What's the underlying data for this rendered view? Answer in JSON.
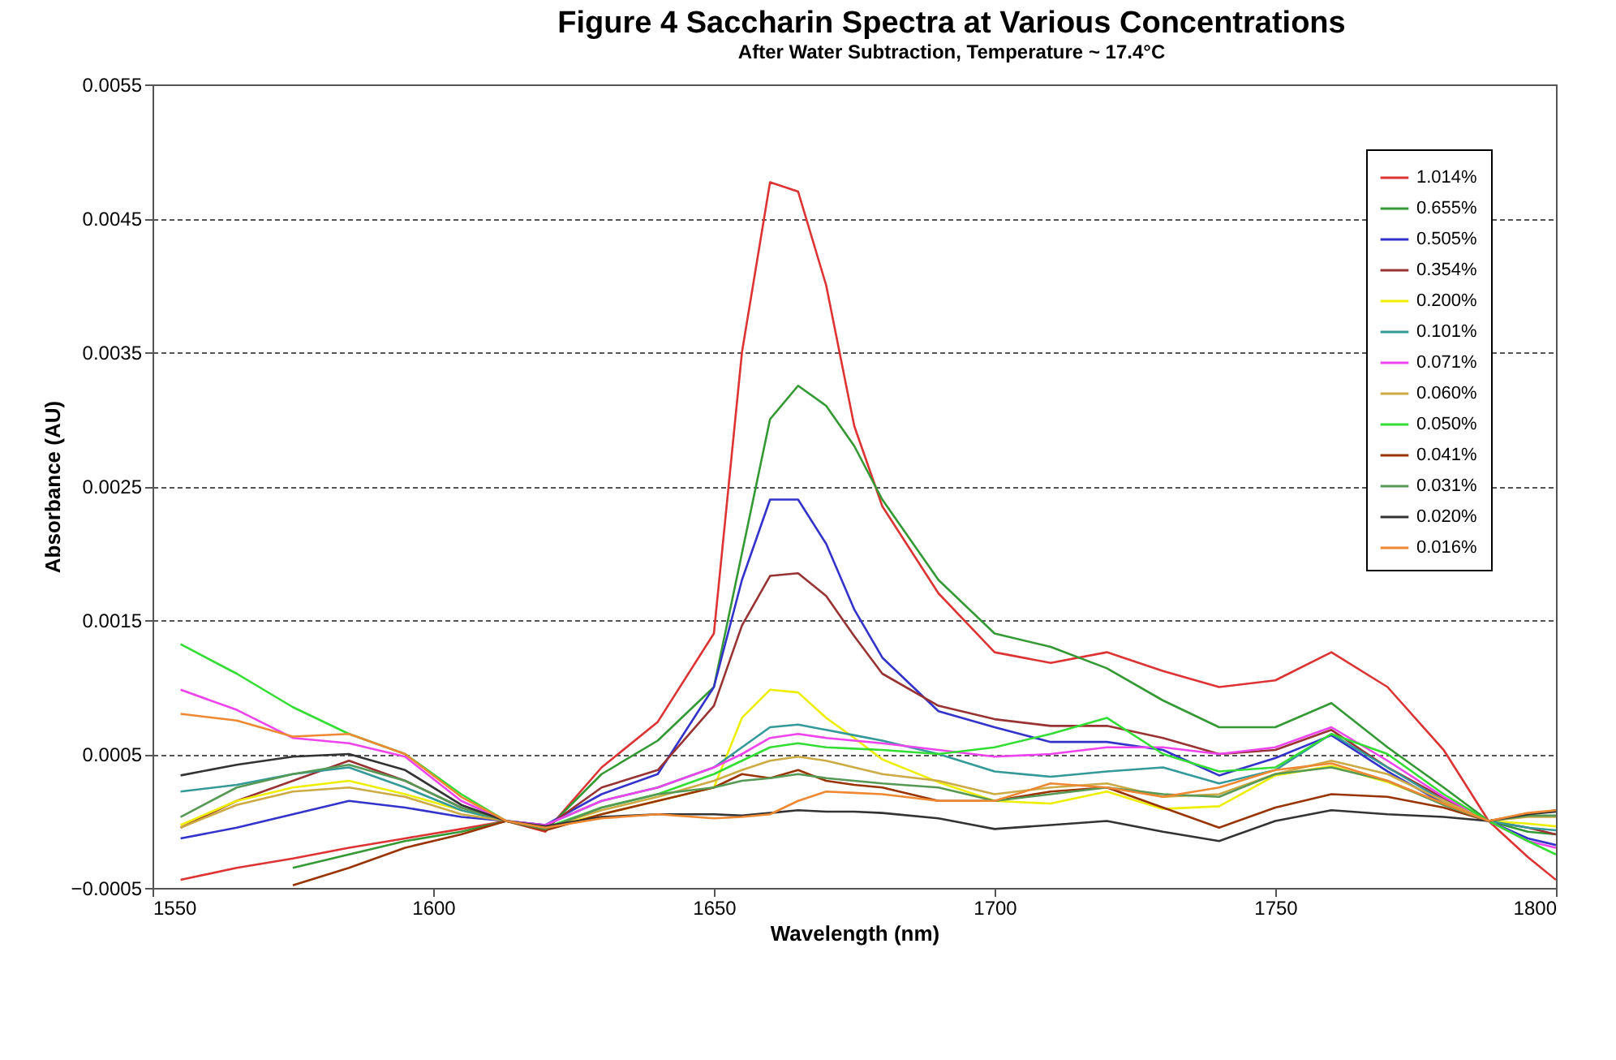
{
  "chart_data": {
    "type": "line",
    "title": "Figure 4 Saccharin Spectra at Various Concentrations",
    "subtitle": "After Water Subtraction, Temperature ~ 17.4°C",
    "xlabel": "Wavelength (nm)",
    "ylabel": "Absorbance (AU)",
    "x": [
      1555,
      1565,
      1575,
      1585,
      1595,
      1605,
      1613,
      1620,
      1630,
      1640,
      1650,
      1655,
      1660,
      1665,
      1670,
      1675,
      1680,
      1690,
      1700,
      1710,
      1720,
      1730,
      1740,
      1750,
      1760,
      1770,
      1780,
      1788,
      1795,
      1800
    ],
    "xlim": [
      1550,
      1800
    ],
    "xticks": [
      1550,
      1600,
      1650,
      1700,
      1750,
      1800
    ],
    "ylim": [
      -0.0005,
      0.0055
    ],
    "yticks": [
      -0.0005,
      0.0005,
      0.0015,
      0.0025,
      0.0035,
      0.0045,
      0.0055
    ],
    "grid": "y",
    "legend": "top right",
    "marker": "none",
    "line_style": "solid",
    "series": [
      {
        "name": "1.014%",
        "color": "#dd3333",
        "values": [
          -0.00044,
          -0.00035,
          -0.00028,
          -0.0002,
          -0.00013,
          -6e-05,
          0,
          -8e-05,
          0.0004,
          0.00074,
          0.0014,
          0.0035,
          0.00477,
          0.0047,
          0.004,
          0.00295,
          0.00235,
          0.0017,
          0.00126,
          0.00118,
          0.00126,
          0.00112,
          0.001,
          0.00105,
          0.00126,
          0.001,
          0.00053,
          0,
          -0.00027,
          -0.00044
        ]
      },
      {
        "name": "0.655%",
        "color": "#339933",
        "values": [
          null,
          null,
          -0.00035,
          -0.00025,
          -0.00015,
          -8e-05,
          0,
          -7e-05,
          0.00035,
          0.0006,
          0.001,
          0.002,
          0.003,
          0.00325,
          0.0031,
          0.0028,
          0.0024,
          0.0018,
          0.0014,
          0.0013,
          0.00114,
          0.0009,
          0.0007,
          0.0007,
          0.00088,
          0.00055,
          0.00025,
          0,
          -8e-05,
          -0.0001
        ]
      },
      {
        "name": "0.505%",
        "color": "#3333cc",
        "values": [
          -0.00013,
          -5e-05,
          5e-05,
          0.00015,
          0.0001,
          3e-05,
          0,
          -3e-05,
          0.0002,
          0.00035,
          0.001,
          0.0018,
          0.0024,
          0.0024,
          0.00207,
          0.00158,
          0.00122,
          0.00082,
          0.0007,
          0.00059,
          0.00059,
          0.00053,
          0.00034,
          0.00047,
          0.00064,
          0.00037,
          0.00013,
          0,
          -0.00013,
          -0.00018
        ]
      },
      {
        "name": "0.354%",
        "color": "#993333",
        "values": [
          -5e-05,
          0.00015,
          0.0003,
          0.00045,
          0.0003,
          0.0001,
          0,
          -5e-05,
          0.00025,
          0.00038,
          0.00086,
          0.00146,
          0.00183,
          0.00185,
          0.00168,
          0.00138,
          0.0011,
          0.00086,
          0.00076,
          0.00071,
          0.00071,
          0.00062,
          0.0005,
          0.00053,
          0.00068,
          0.0004,
          0.00017,
          0,
          -5e-05,
          -0.0001
        ]
      },
      {
        "name": "0.200%",
        "color": "#eeee00",
        "values": [
          -3e-05,
          0.00015,
          0.00025,
          0.0003,
          0.0002,
          8e-05,
          0,
          -5e-05,
          5e-05,
          0.00015,
          0.00025,
          0.00077,
          0.00098,
          0.00096,
          0.00077,
          0.00062,
          0.00046,
          0.00029,
          0.00015,
          0.00013,
          0.00022,
          9e-05,
          0.00011,
          0.00034,
          0.00041,
          0.00029,
          0.00013,
          0,
          -2e-05,
          -4e-05
        ]
      },
      {
        "name": "0.101%",
        "color": "#339999",
        "values": [
          0.00022,
          0.00027,
          0.00035,
          0.0004,
          0.00025,
          8e-05,
          0,
          -3e-05,
          0.00015,
          0.00025,
          0.0004,
          0.00055,
          0.0007,
          0.00072,
          0.00068,
          0.00064,
          0.0006,
          0.0005,
          0.00037,
          0.00033,
          0.00037,
          0.0004,
          0.00028,
          0.00038,
          0.00065,
          0.0004,
          0.00015,
          0,
          -5e-05,
          -7e-05
        ]
      },
      {
        "name": "0.071%",
        "color": "#ee44ee",
        "values": [
          0.00098,
          0.00083,
          0.00062,
          0.00058,
          0.00048,
          0.00015,
          0,
          -3e-05,
          0.00015,
          0.00025,
          0.0004,
          0.0005,
          0.00062,
          0.00065,
          0.00062,
          0.0006,
          0.00058,
          0.00053,
          0.00048,
          0.0005,
          0.00055,
          0.00055,
          0.0005,
          0.00055,
          0.0007,
          0.00045,
          0.00018,
          0,
          -0.00015,
          -0.0002
        ]
      },
      {
        "name": "0.060%",
        "color": "#ccaa44",
        "values": [
          -5e-05,
          0.00012,
          0.00022,
          0.00025,
          0.00018,
          5e-05,
          0,
          -5e-05,
          8e-05,
          0.00018,
          0.0003,
          0.00038,
          0.00045,
          0.00048,
          0.00045,
          0.0004,
          0.00035,
          0.0003,
          0.0002,
          0.00025,
          0.00028,
          0.00018,
          0.0002,
          0.00035,
          0.00045,
          0.00035,
          0.00015,
          0,
          3e-05,
          3e-05
        ]
      },
      {
        "name": "0.050%",
        "color": "#33dd33",
        "values": [
          0.00132,
          0.0011,
          0.00085,
          0.00065,
          0.0005,
          0.0002,
          0,
          -5e-05,
          0.0001,
          0.0002,
          0.00035,
          0.00045,
          0.00055,
          0.00058,
          0.00055,
          0.00054,
          0.00053,
          0.0005,
          0.00055,
          0.00065,
          0.00077,
          0.0005,
          0.00037,
          0.0004,
          0.00065,
          0.0005,
          0.0002,
          0,
          -0.00015,
          -0.00025
        ]
      },
      {
        "name": "0.041%",
        "color": "#993300",
        "values": [
          null,
          null,
          -0.00048,
          -0.00035,
          -0.0002,
          -0.0001,
          0,
          -7e-05,
          5e-05,
          0.00015,
          0.00025,
          0.00035,
          0.00032,
          0.00038,
          0.0003,
          0.00027,
          0.00025,
          0.00015,
          0.00015,
          0.00022,
          0.00025,
          0.0001,
          -5e-05,
          0.0001,
          0.0002,
          0.00018,
          0.0001,
          0,
          5e-05,
          8e-05
        ]
      },
      {
        "name": "0.031%",
        "color": "#559955",
        "values": [
          3e-05,
          0.00025,
          0.00035,
          0.00042,
          0.0003,
          0.0001,
          0,
          -6e-05,
          0.0001,
          0.0002,
          0.00025,
          0.0003,
          0.00032,
          0.00035,
          0.00032,
          0.0003,
          0.00028,
          0.00025,
          0.00015,
          0.0002,
          0.00025,
          0.0002,
          0.00018,
          0.00035,
          0.0004,
          0.0003,
          0.00012,
          0,
          4e-05,
          4e-05
        ]
      },
      {
        "name": "0.020%",
        "color": "#333333",
        "values": [
          0.00034,
          0.00042,
          0.00048,
          0.0005,
          0.00038,
          0.00012,
          0,
          -4e-05,
          3e-05,
          5e-05,
          5e-05,
          4e-05,
          6e-05,
          8e-05,
          7e-05,
          7e-05,
          6e-05,
          2e-05,
          -6e-05,
          -3e-05,
          0,
          -8e-05,
          -0.00015,
          0,
          8e-05,
          5e-05,
          3e-05,
          0,
          5e-05,
          7e-05
        ]
      },
      {
        "name": "0.016%",
        "color": "#ee8833",
        "values": [
          0.0008,
          0.00075,
          0.00063,
          0.00065,
          0.0005,
          0.00018,
          0,
          -5e-05,
          2e-05,
          5e-05,
          2e-05,
          3e-05,
          5e-05,
          0.00015,
          0.00022,
          0.00021,
          0.0002,
          0.00015,
          0.00015,
          0.00028,
          0.00025,
          0.00018,
          0.00025,
          0.00038,
          0.00043,
          0.0003,
          0.00013,
          0,
          6e-05,
          8e-05
        ]
      }
    ]
  }
}
